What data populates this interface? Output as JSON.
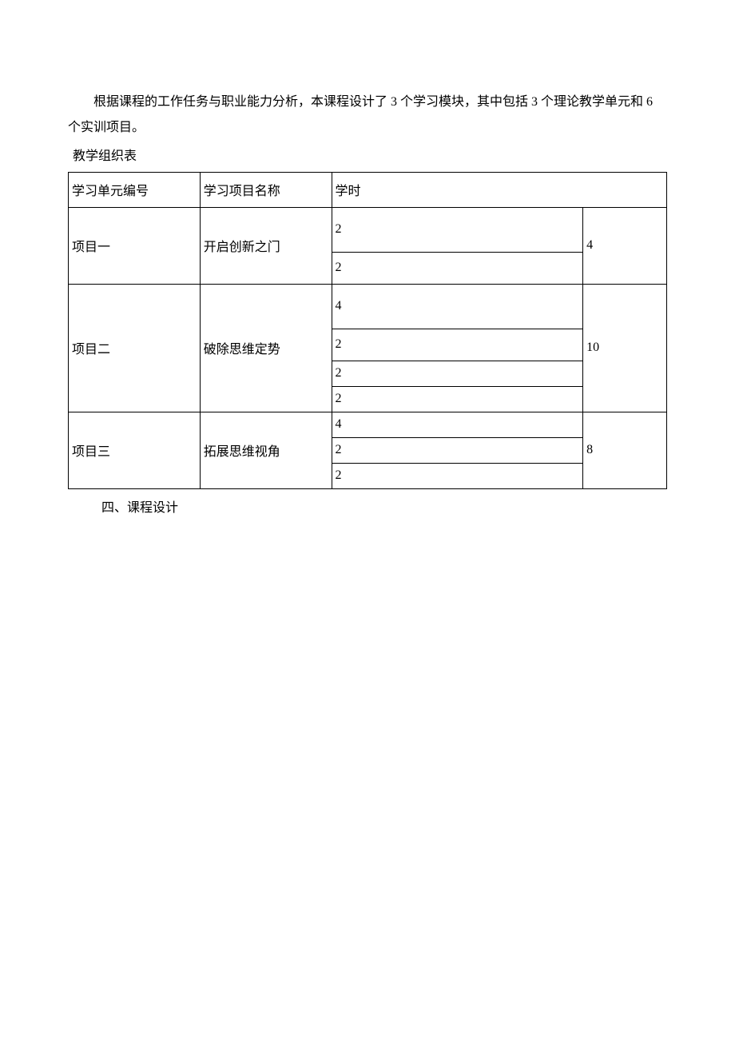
{
  "intro": {
    "paragraph": "根据课程的工作任务与职业能力分析，本课程设计了 3 个学习模块，其中包括 3 个理论教学单元和 6 个实训项目。"
  },
  "table": {
    "caption": "教学组织表",
    "headers": {
      "unit": "学习单元编号",
      "name": "学习项目名称",
      "hours": "学时"
    },
    "rows": [
      {
        "unit": "项目一",
        "name": "开启创新之门",
        "sub_hours": [
          "2",
          "2"
        ],
        "total": "4"
      },
      {
        "unit": "项目二",
        "name": "破除思维定势",
        "sub_hours": [
          "4",
          "2",
          "2",
          "2"
        ],
        "total": "10"
      },
      {
        "unit": "项目三",
        "name": "拓展思维视角",
        "sub_hours": [
          "4",
          "2",
          "2"
        ],
        "total": "8"
      }
    ]
  },
  "footer": {
    "heading": "四、课程设计"
  },
  "style": {
    "page_bg": "#ffffff",
    "text_color": "#000000",
    "border_color": "#000000",
    "base_fontsize": 16
  }
}
